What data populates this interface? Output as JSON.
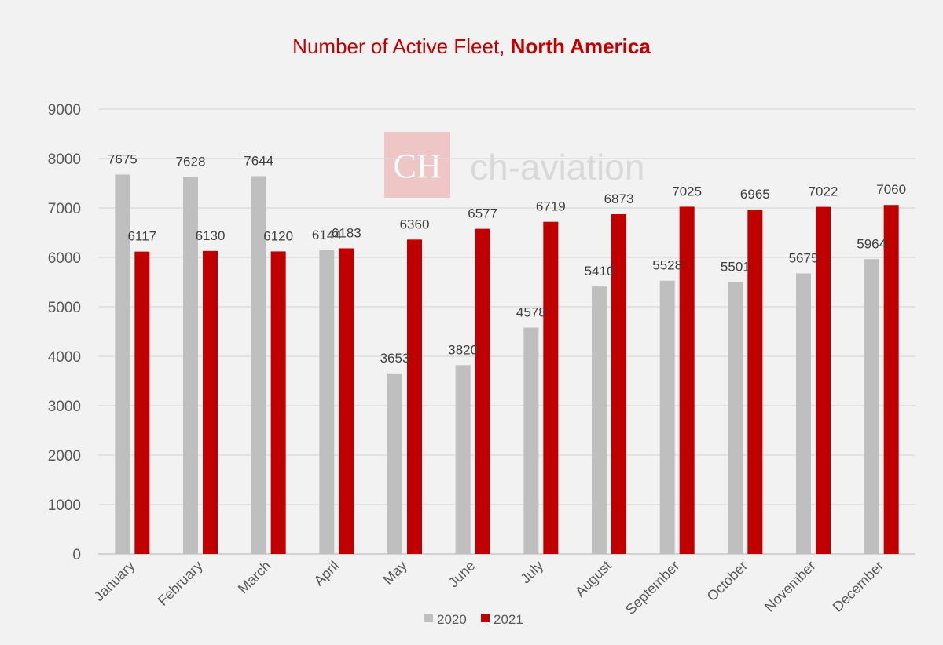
{
  "chart_data": {
    "type": "bar",
    "title": "Number of Active Fleet, ",
    "title_bold": "North America",
    "categories": [
      "January",
      "February",
      "March",
      "April",
      "May",
      "June",
      "July",
      "August",
      "September",
      "October",
      "November",
      "December"
    ],
    "series": [
      {
        "name": "2020",
        "color": "#bfbfbf",
        "values": [
          7675,
          7628,
          7644,
          6144,
          3653,
          3820,
          4578,
          5410,
          5528,
          5501,
          5675,
          5964
        ]
      },
      {
        "name": "2021",
        "color": "#c00000",
        "values": [
          6117,
          6130,
          6120,
          6183,
          6360,
          6577,
          6719,
          6873,
          7025,
          6965,
          7022,
          7060
        ]
      }
    ],
    "ylim": [
      0,
      9000
    ],
    "yticks": [
      0,
      1000,
      2000,
      3000,
      4000,
      5000,
      6000,
      7000,
      8000,
      9000
    ],
    "grid": true,
    "legend": "bottom",
    "xlabel": "",
    "ylabel": ""
  },
  "watermark": {
    "logo": "CH",
    "text": "ch-aviation"
  }
}
